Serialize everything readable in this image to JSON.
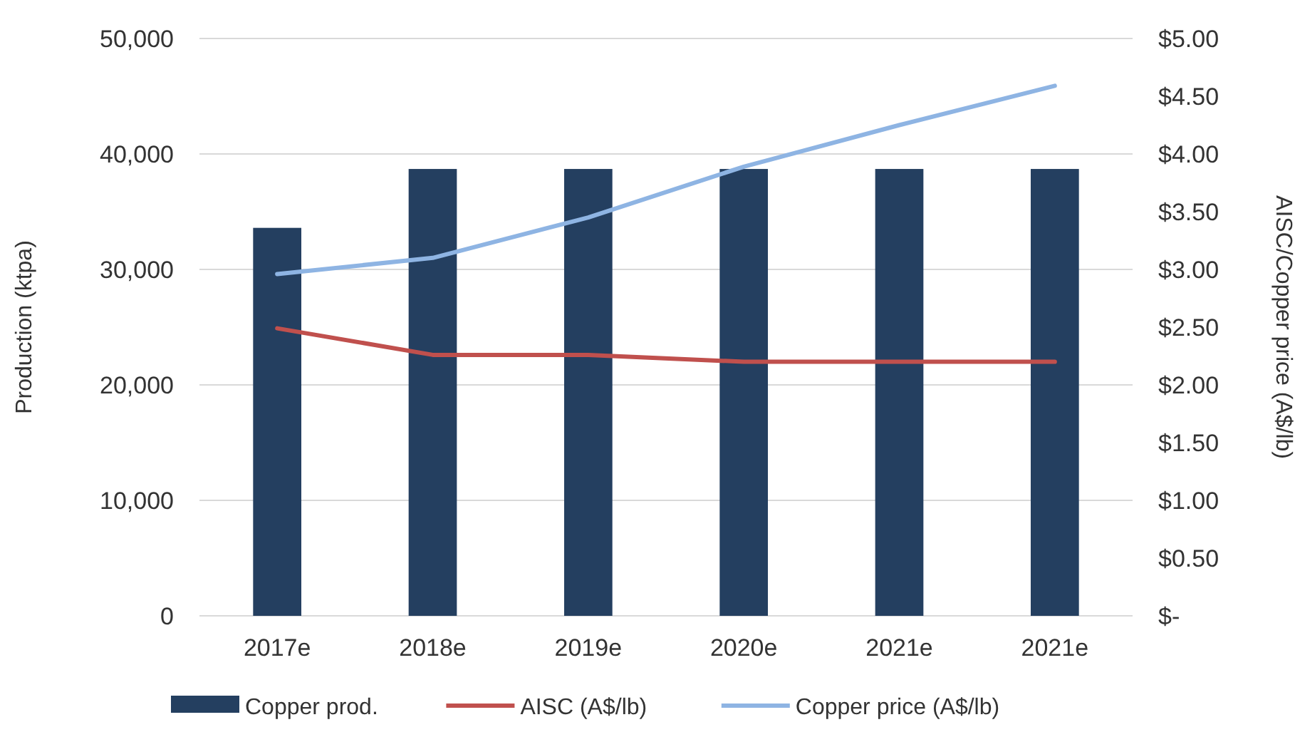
{
  "chart_data": {
    "type": "bar",
    "ylabel": "Production (ktpa)",
    "y2label": "AISC/Copper price (A$/lb)",
    "categories": [
      "2017e",
      "2018e",
      "2019e",
      "2020e",
      "2021e",
      "2021e"
    ],
    "series": [
      {
        "name": "Copper prod.",
        "color": "#243f60",
        "values": [
          33600,
          38700,
          38700,
          38700,
          38700,
          38700
        ]
      },
      {
        "name": "AISC (A$/lb)",
        "type": "line",
        "axis": "y2",
        "color": "#c0504d",
        "values": [
          2.49,
          2.26,
          2.26,
          2.2,
          2.2,
          2.2
        ]
      },
      {
        "name": "Copper price (A$/lb)",
        "type": "line",
        "axis": "y2",
        "color": "#8eb4e3",
        "values": [
          2.96,
          3.1,
          3.45,
          3.89,
          4.25,
          4.59
        ]
      }
    ],
    "ylim": [
      0,
      50000
    ],
    "yticks": [
      {
        "value": 0,
        "label": "0"
      },
      {
        "value": 10000,
        "label": "10,000"
      },
      {
        "value": 20000,
        "label": "20,000"
      },
      {
        "value": 30000,
        "label": "30,000"
      },
      {
        "value": 40000,
        "label": "40,000"
      },
      {
        "value": 50000,
        "label": "50,000"
      }
    ],
    "y2lim": [
      0,
      5
    ],
    "y2ticks": [
      {
        "value": 0,
        "label": "$-"
      },
      {
        "value": 0.5,
        "label": "$0.50"
      },
      {
        "value": 1,
        "label": "$1.00"
      },
      {
        "value": 1.5,
        "label": "$1.50"
      },
      {
        "value": 2,
        "label": "$2.00"
      },
      {
        "value": 2.5,
        "label": "$2.50"
      },
      {
        "value": 3,
        "label": "$3.00"
      },
      {
        "value": 3.5,
        "label": "$3.50"
      },
      {
        "value": 4,
        "label": "$4.00"
      },
      {
        "value": 4.5,
        "label": "$4.50"
      },
      {
        "value": 5,
        "label": "$5.00"
      }
    ],
    "grid": "y",
    "legend": "bottom",
    "marker": "none"
  }
}
